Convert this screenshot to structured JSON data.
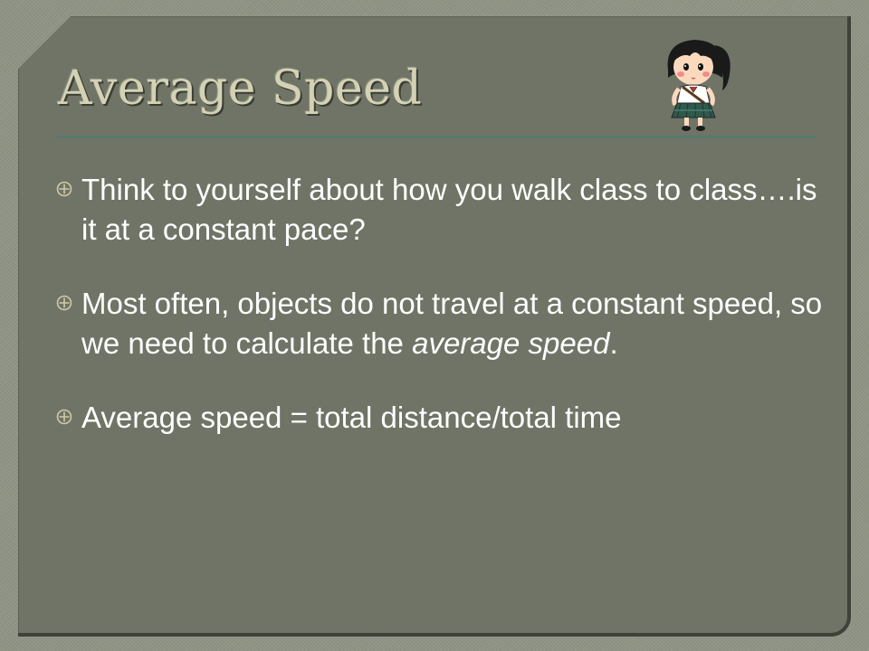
{
  "slide": {
    "title": "Average Speed",
    "bullets": [
      {
        "text": "Think to yourself about how you walk class to class….is it at a constant pace?"
      },
      {
        "text_before": "Most often, objects do not travel at a constant speed, so we need to calculate the ",
        "emphasis": "average speed",
        "text_after": "."
      },
      {
        "text": "Average speed = total distance/total time"
      }
    ]
  },
  "colors": {
    "background": "#6f7466",
    "title": "#d4d2b4",
    "body_text": "#ffffff",
    "accent_rule": "#4f7a72",
    "bullet_marker": "#cfc9a8"
  },
  "icons": {
    "bullet": "circled-cross-bullet-icon",
    "character": "schoolgirl-clipart"
  }
}
